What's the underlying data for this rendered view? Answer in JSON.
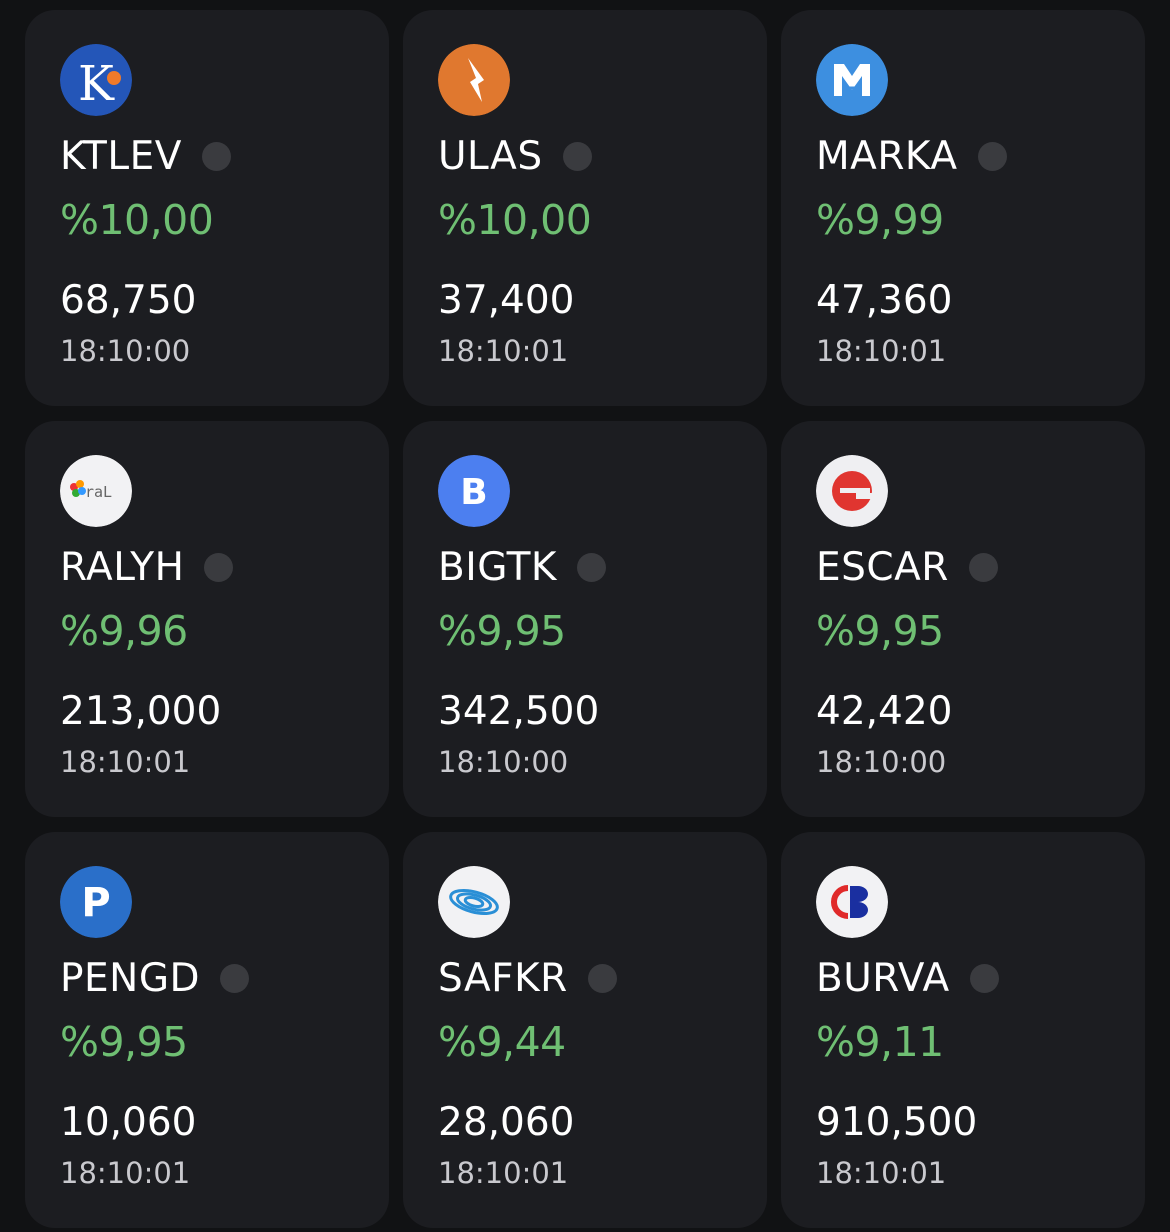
{
  "colors": {
    "background": "#111214",
    "card": "#1c1d21",
    "positive": "#6fbf73",
    "status_dot": "#3a3b3f"
  },
  "stocks": [
    {
      "ticker": "KTLEV",
      "change": "%10,00",
      "price": "68,750",
      "time": "18:10:00",
      "logo": "ktlev-logo-icon"
    },
    {
      "ticker": "ULAS",
      "change": "%10,00",
      "price": "37,400",
      "time": "18:10:01",
      "logo": "ulas-logo-icon"
    },
    {
      "ticker": "MARKA",
      "change": "%9,99",
      "price": "47,360",
      "time": "18:10:01",
      "logo": "marka-logo-icon"
    },
    {
      "ticker": "RALYH",
      "change": "%9,96",
      "price": "213,000",
      "time": "18:10:01",
      "logo": "ralyh-logo-icon"
    },
    {
      "ticker": "BIGTK",
      "change": "%9,95",
      "price": "342,500",
      "time": "18:10:00",
      "logo": "bigtk-logo-icon"
    },
    {
      "ticker": "ESCAR",
      "change": "%9,95",
      "price": "42,420",
      "time": "18:10:00",
      "logo": "escar-logo-icon"
    },
    {
      "ticker": "PENGD",
      "change": "%9,95",
      "price": "10,060",
      "time": "18:10:01",
      "logo": "pengd-logo-icon"
    },
    {
      "ticker": "SAFKR",
      "change": "%9,44",
      "price": "28,060",
      "time": "18:10:01",
      "logo": "safkr-logo-icon"
    },
    {
      "ticker": "BURVA",
      "change": "%9,11",
      "price": "910,500",
      "time": "18:10:01",
      "logo": "burva-logo-icon"
    }
  ]
}
